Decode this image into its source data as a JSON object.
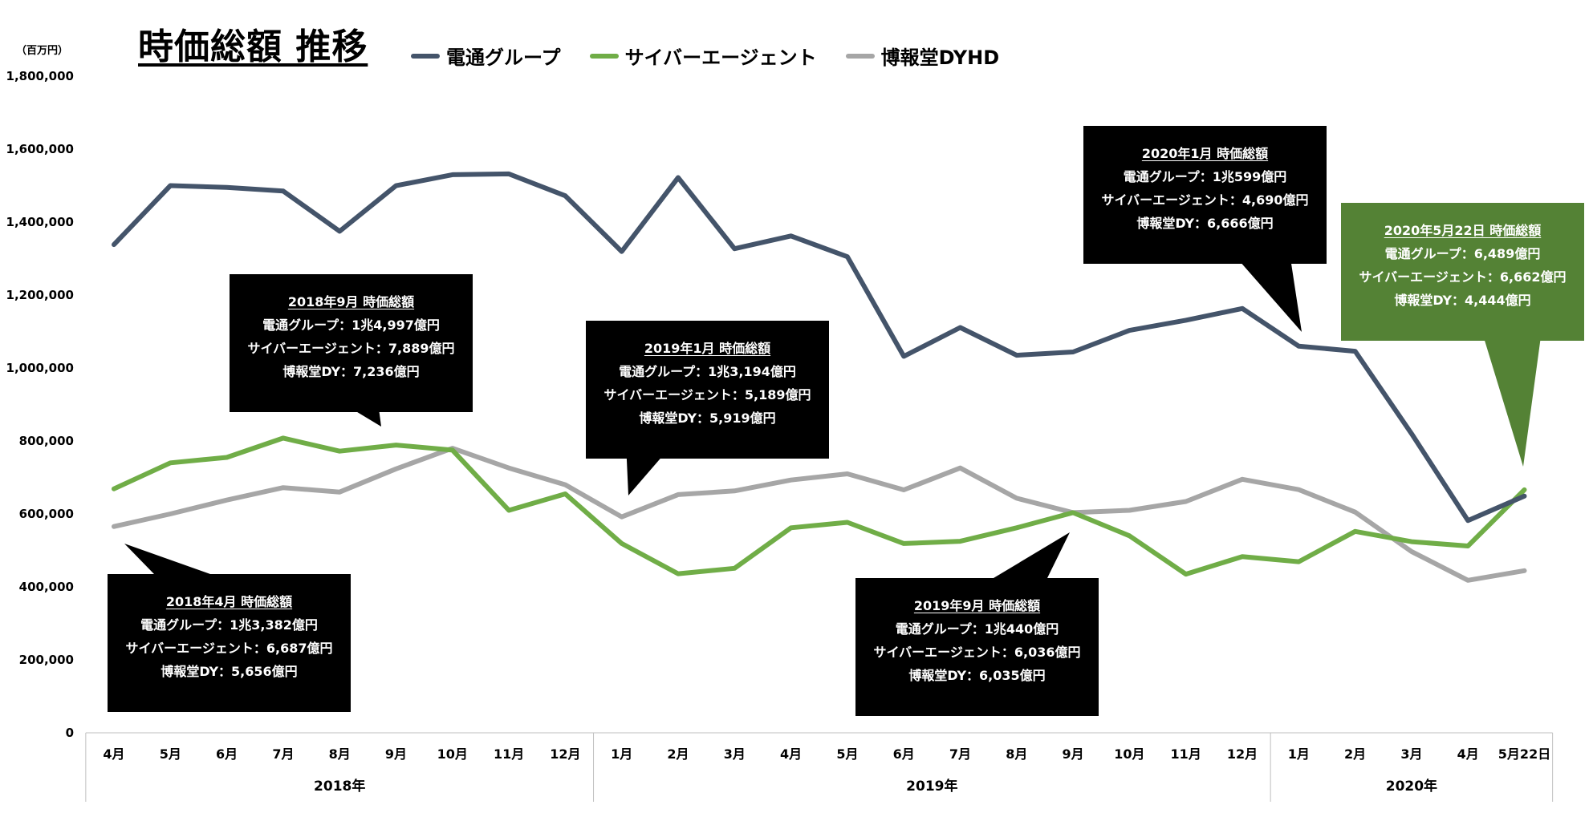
{
  "title": "時価総額 推移",
  "unit_label": "（百万円）",
  "colors": {
    "dentsu": "#44546a",
    "cyberagent": "#70ad47",
    "hakuhodo": "#a6a6a6",
    "callout_bg": "#000000",
    "callout_green": "#548235"
  },
  "chart_data": {
    "type": "line",
    "categories": [
      "4月",
      "5月",
      "6月",
      "7月",
      "8月",
      "9月",
      "10月",
      "11月",
      "12月",
      "1月",
      "2月",
      "3月",
      "4月",
      "5月",
      "6月",
      "7月",
      "8月",
      "9月",
      "10月",
      "11月",
      "12月",
      "1月",
      "2月",
      "3月",
      "4月",
      "5月22日"
    ],
    "year_groups": [
      {
        "label": "2018年",
        "start": 0,
        "end": 8
      },
      {
        "label": "2019年",
        "start": 9,
        "end": 20
      },
      {
        "label": "2020年",
        "start": 21,
        "end": 25
      }
    ],
    "ylim": [
      0,
      1800000
    ],
    "yticks": [
      0,
      200000,
      400000,
      600000,
      800000,
      1000000,
      1200000,
      1400000,
      1600000,
      1800000
    ],
    "ytick_labels": [
      "0",
      "200,000",
      "400,000",
      "600,000",
      "800,000",
      "1,000,000",
      "1,200,000",
      "1,400,000",
      "1,600,000",
      "1,800,000"
    ],
    "series": [
      {
        "name": "電通グループ",
        "color": "#44546a",
        "values": [
          1338200,
          1500000,
          1495000,
          1485000,
          1375000,
          1499700,
          1530000,
          1532000,
          1472000,
          1319400,
          1522000,
          1327000,
          1362000,
          1305000,
          1032000,
          1111000,
          1035000,
          1044000,
          1103000,
          1131000,
          1163000,
          1059900,
          1046000,
          820000,
          582000,
          648900
        ]
      },
      {
        "name": "サイバーエージェント",
        "color": "#70ad47",
        "values": [
          668700,
          740000,
          755000,
          808000,
          772000,
          788900,
          775000,
          610000,
          655000,
          518900,
          436000,
          451000,
          562000,
          577000,
          519000,
          525000,
          562000,
          603600,
          540000,
          435000,
          483000,
          469000,
          552000,
          524000,
          512000,
          666200
        ]
      },
      {
        "name": "博報堂DYHD",
        "color": "#a6a6a6",
        "values": [
          565600,
          600000,
          638000,
          672000,
          660000,
          723600,
          780000,
          726000,
          680000,
          591900,
          653000,
          663000,
          693000,
          710000,
          666000,
          726000,
          643000,
          603500,
          610000,
          634000,
          695000,
          666600,
          605000,
          497000,
          418000,
          444400
        ]
      }
    ]
  },
  "legend": [
    "電通グループ",
    "サイバーエージェント",
    "博報堂DYHD"
  ],
  "callouts": [
    {
      "title": "2018年4月 時価総額",
      "lines": [
        "電通グループ：1兆3,382億円",
        "サイバーエージェント：6,687億円",
        "博報堂DY：5,656億円"
      ]
    },
    {
      "title": "2018年9月 時価総額",
      "lines": [
        "電通グループ：1兆4,997億円",
        "サイバーエージェント：7,889億円",
        "博報堂DY：7,236億円"
      ]
    },
    {
      "title": "2019年1月 時価総額",
      "lines": [
        "電通グループ：1兆3,194億円",
        "サイバーエージェント：5,189億円",
        "博報堂DY：5,919億円"
      ]
    },
    {
      "title": "2019年9月 時価総額",
      "lines": [
        "電通グループ：1兆440億円",
        "サイバーエージェント：6,036億円",
        "博報堂DY：6,035億円"
      ]
    },
    {
      "title": "2020年1月 時価総額",
      "lines": [
        "電通グループ：1兆599億円",
        "サイバーエージェント：4,690億円",
        "博報堂DY：6,666億円"
      ]
    },
    {
      "title": "2020年5月22日 時価総額",
      "lines": [
        "電通グループ：6,489億円",
        "サイバーエージェント：6,662億円",
        "博報堂DY：4,444億円"
      ]
    }
  ]
}
